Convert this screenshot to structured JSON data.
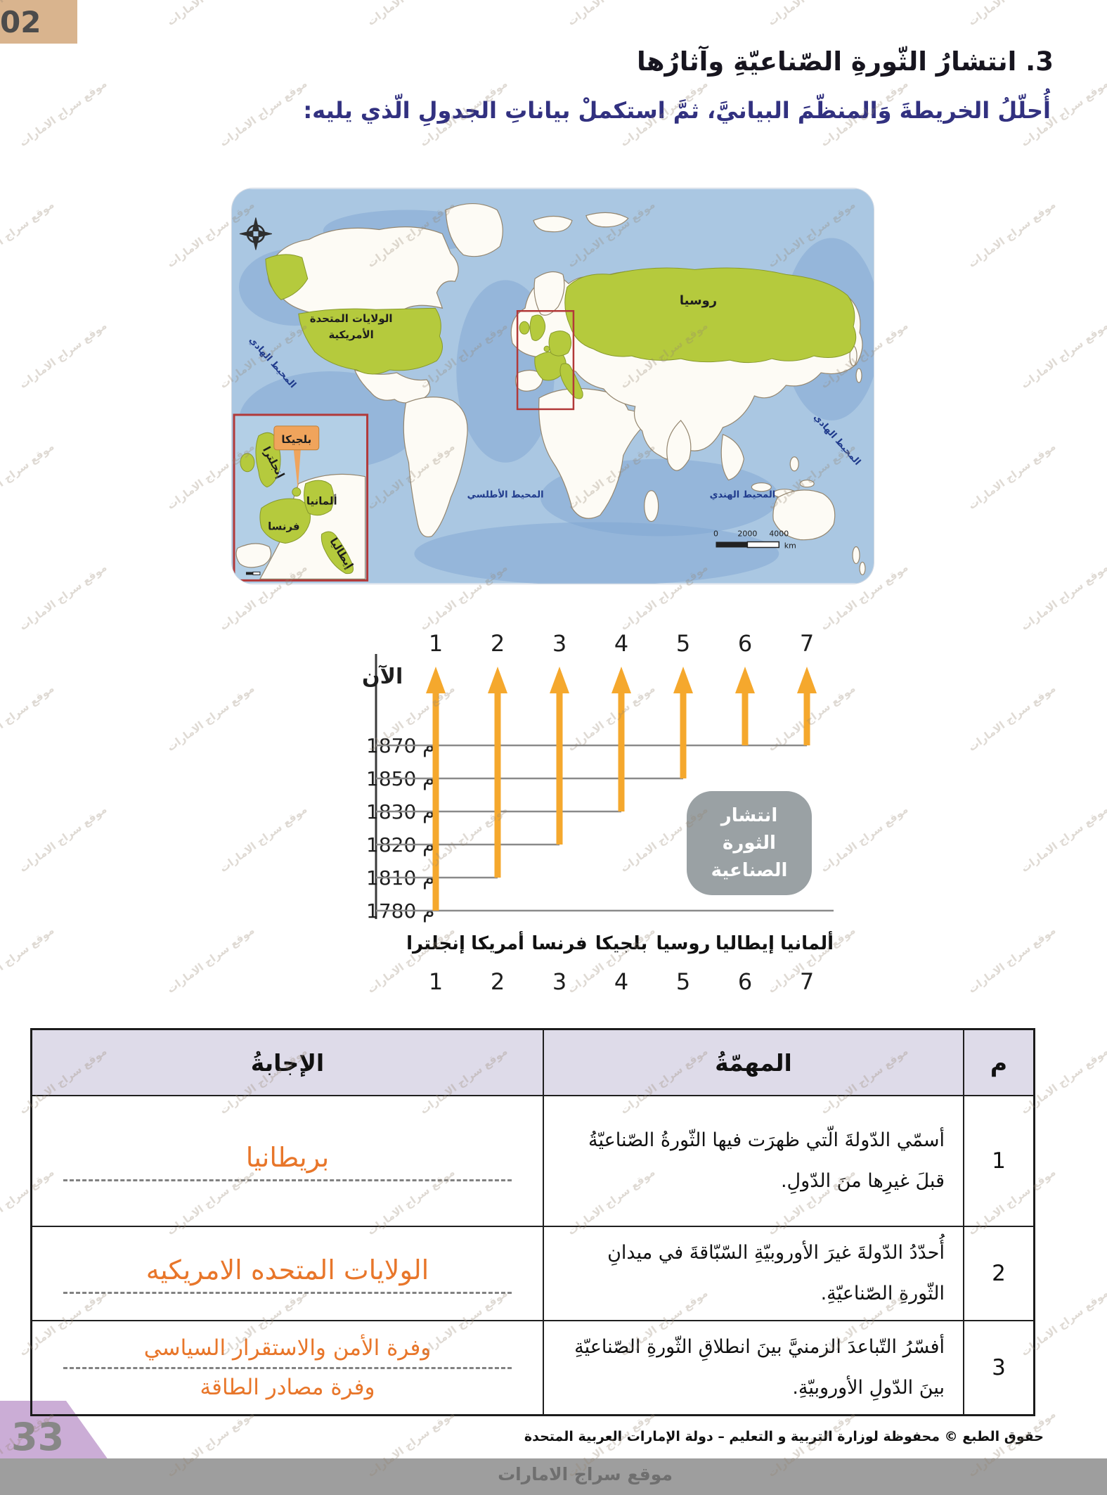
{
  "page": {
    "corner_number": "02",
    "page_number": "33",
    "watermark_text": "موقع سراج الامارات",
    "footer_bar_text": "موقع سراج الامارات",
    "copyright": "حقوق الطبع © محفوظة لوزارة التربية و التعليم – دولة الإمارات العربية المتحدة"
  },
  "headings": {
    "section": "3. انتشارُ الثّورةِ الصّناعيّةِ وآثارُها",
    "instruction": "أُحلّلُ الخريطةَ وَالمنظّمَ البيانيَّ، ثمَّ استكملْ بياناتِ الجدولِ الّذي يليه:"
  },
  "map": {
    "labels": {
      "usa_line1": "الولايات المتحدة",
      "usa_line2": "الأمريكية",
      "russia": "روسيا",
      "pacific_left": "المحيط الهادي",
      "pacific_right": "المحيط الهادي",
      "atlantic": "المحيط الأطلسي",
      "indian": "المحيط الهندي",
      "inset_belgium": "بلجيكا",
      "inset_germany": "ألمانيا",
      "inset_france": "فرنسا",
      "inset_italy": "إيطاليا",
      "inset_england": "إنجلترا"
    },
    "scale": {
      "t0": "0",
      "t1": "2000",
      "t2": "4000",
      "unit": "km"
    }
  },
  "chart_data": {
    "type": "timeline-arrows",
    "title": "انتشار الثورة الصناعية",
    "now_label": "الآن",
    "year_suffix": "م",
    "years": [
      1870,
      1850,
      1830,
      1820,
      1810,
      1780
    ],
    "categories": [
      {
        "num": "1",
        "name": "إنجلترا",
        "start_year": 1780
      },
      {
        "num": "2",
        "name": "أمريكا",
        "start_year": 1810
      },
      {
        "num": "3",
        "name": "فرنسا",
        "start_year": 1820
      },
      {
        "num": "4",
        "name": "بلجيكا",
        "start_year": 1830
      },
      {
        "num": "5",
        "name": "روسيا",
        "start_year": 1850
      },
      {
        "num": "6",
        "name": "إيطاليا",
        "start_year": 1870
      },
      {
        "num": "7",
        "name": "ألمانيا",
        "start_year": 1870
      }
    ],
    "arrow_color": "#f5a82d",
    "grid_color": "#8a8a8a",
    "note_box_color": "#9aa1a4"
  },
  "table": {
    "headers": {
      "no": "م",
      "task": "المهمّةُ",
      "answer": "الإجابةُ"
    },
    "rows": [
      {
        "no": "1",
        "task": "أسمّي الدّولةَ الّتي ظهرَت فيها الثّورةُ الصّناعيّةُ قبلَ غيرِها منَ الدّولِ.",
        "answer_lines": [
          "بريطانيا"
        ]
      },
      {
        "no": "2",
        "task": "أُحدّدُ الدّولةَ غيرَ الأوروبيّةِ السّبّاقةَ في ميدانِ الثّورةِ الصّناعيّةِ.",
        "answer_lines": [
          "الولايات المتحده الامريكيه"
        ]
      },
      {
        "no": "3",
        "task": "أفسّرُ التّباعدَ الزمنيَّ بينَ انطلاقِ الثّورةِ الصّناعيّةِ بينَ الدّولِ الأوروبيّةِ.",
        "answer_lines": [
          "وفرة الأمن والاستقرار السياسي",
          "وفرة مصادر الطاقة"
        ]
      }
    ]
  }
}
